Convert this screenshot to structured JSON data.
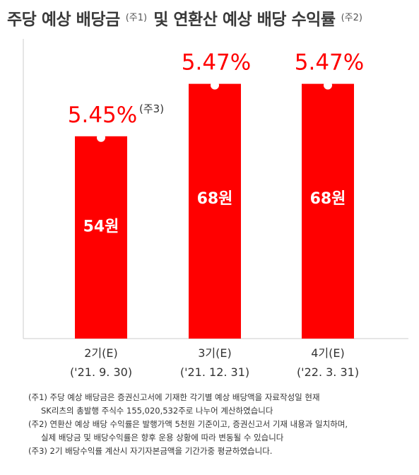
{
  "title": {
    "part1": "주당 예상 배당금",
    "note1": "(주1)",
    "part2": "및 연환산 예상 배당 수익률",
    "note2": "(주2)"
  },
  "chart_data": {
    "type": "bar",
    "categories": [
      [
        "2기(E)",
        "('21. 9. 30)"
      ],
      [
        "3기(E)",
        "('21. 12. 31)"
      ],
      [
        "4기(E)",
        "('22. 3. 31)"
      ]
    ],
    "values": [
      54,
      68,
      68
    ],
    "value_labels": [
      "54원",
      "68원",
      "68원"
    ],
    "yields": [
      "5.45%",
      "5.47%",
      "5.47%"
    ],
    "yield_notes": [
      "(주3)",
      "",
      ""
    ],
    "ylim": [
      0,
      80
    ],
    "grid": false,
    "colors": {
      "bar": "#ff0000",
      "yield_text": "#ff0000",
      "axis": "#cccccc"
    }
  },
  "notes": [
    "(주1) 주당 예상 배당금은 증권신고서에 기재한 각기별 예상 배당액을 자료작성일 현재",
    "SK리츠의 총발행 주식수 155,020,532주로 나누어 계산하였습니다",
    "(주2) 연환산 예상 배당 수익률은 발행가액 5천원 기준이고, 증권신고서 기재 내용과 일치하며,",
    "실제 배당금 및 배당수익률은 향후 운용 상황에 따라 변동될 수 있습니다",
    "(주3) 2기 배당수익률 계산시 자기자본금액을 기간가중 평균하였습니다."
  ]
}
